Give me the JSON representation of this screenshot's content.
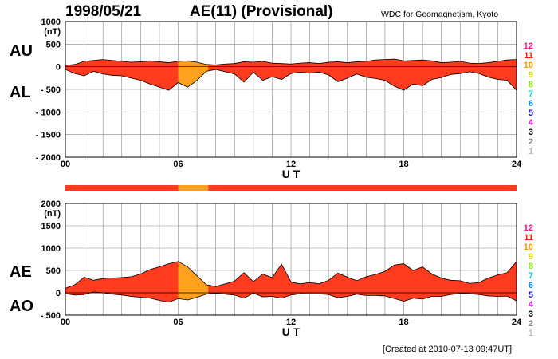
{
  "header": {
    "date": "1998/05/21",
    "title": "AE(11) (Provisional)",
    "source": "WDC for Geomagnetism, Kyoto"
  },
  "footer": {
    "created": "[Created at 2010-07-13 09:47UT]"
  },
  "colors": {
    "fill_main": "#ff3b1f",
    "fill_provisional": "#ffa01e",
    "grid": "#888888",
    "scale": [
      {
        "label": "12",
        "color": "#ff1493"
      },
      {
        "label": "11",
        "color": "#ff2200"
      },
      {
        "label": "10",
        "color": "#ff9900"
      },
      {
        "label": "9",
        "color": "#dddd00"
      },
      {
        "label": "8",
        "color": "#88ee00"
      },
      {
        "label": "7",
        "color": "#00dddd"
      },
      {
        "label": "6",
        "color": "#0088ff"
      },
      {
        "label": "5",
        "color": "#1111dd"
      },
      {
        "label": "4",
        "color": "#cc00cc"
      },
      {
        "label": "3",
        "color": "#000000"
      },
      {
        "label": "2",
        "color": "#888888"
      },
      {
        "label": "1",
        "color": "#bbbbbb"
      }
    ]
  },
  "station_bar": {
    "segments": [
      {
        "x0": 0,
        "x1": 6.0,
        "level": 11
      },
      {
        "x0": 6.0,
        "x1": 7.6,
        "level": 10
      },
      {
        "x0": 7.6,
        "x1": 24,
        "level": 11
      }
    ]
  },
  "chart_data": [
    {
      "type": "area",
      "panel": "top",
      "label_upper": "AU",
      "label_lower": "AL",
      "unit": "(nT)",
      "xlabel": "U T",
      "xlim": [
        0,
        24
      ],
      "ylim": [
        -2000,
        1000
      ],
      "yticks": [
        1000,
        500,
        0,
        -500,
        -1000,
        -1500,
        -2000
      ],
      "ytick_labels": [
        "1000",
        "500",
        "0",
        "- 500",
        "- 1000",
        "- 1500",
        "- 2000"
      ],
      "xticks": [
        0,
        6,
        12,
        18,
        24
      ],
      "xtick_labels": [
        "00",
        "06",
        "12",
        "18",
        "24"
      ],
      "provisional_range": [
        6.0,
        7.6
      ],
      "x": [
        0,
        0.5,
        1,
        1.5,
        2,
        2.5,
        3,
        3.5,
        4,
        4.5,
        5,
        5.5,
        6,
        6.5,
        7,
        7.5,
        8,
        8.5,
        9,
        9.5,
        10,
        10.5,
        11,
        11.5,
        12,
        12.5,
        13,
        13.5,
        14,
        14.5,
        15,
        15.5,
        16,
        16.5,
        17,
        17.5,
        18,
        18.5,
        19,
        19.5,
        20,
        20.5,
        21,
        21.5,
        22,
        22.5,
        23,
        23.5,
        24
      ],
      "series": [
        {
          "name": "AU",
          "values": [
            30,
            50,
            120,
            140,
            160,
            140,
            120,
            100,
            110,
            130,
            110,
            90,
            120,
            130,
            100,
            50,
            40,
            60,
            70,
            110,
            100,
            120,
            80,
            70,
            60,
            80,
            90,
            70,
            100,
            110,
            90,
            110,
            120,
            150,
            160,
            170,
            130,
            140,
            150,
            130,
            90,
            100,
            120,
            80,
            70,
            90,
            120,
            150,
            160
          ]
        },
        {
          "name": "AL",
          "values": [
            -60,
            -150,
            -200,
            -100,
            -160,
            -190,
            -200,
            -250,
            -300,
            -380,
            -450,
            -520,
            -350,
            -450,
            -300,
            -100,
            -60,
            -110,
            -160,
            -340,
            -120,
            -300,
            -220,
            -280,
            -150,
            -120,
            -140,
            -120,
            -180,
            -330,
            -250,
            -160,
            -230,
            -260,
            -300,
            -430,
            -520,
            -380,
            -420,
            -280,
            -240,
            -170,
            -150,
            -110,
            -150,
            -230,
            -280,
            -300,
            -520
          ]
        }
      ]
    },
    {
      "type": "area",
      "panel": "bottom",
      "label_upper": "AE",
      "label_lower": "AO",
      "unit": "(nT)",
      "xlabel": "U T",
      "xlim": [
        0,
        24
      ],
      "ylim": [
        -500,
        2000
      ],
      "yticks": [
        2000,
        1500,
        1000,
        500,
        0,
        -500
      ],
      "ytick_labels": [
        "2000",
        "1500",
        "1000",
        "500",
        "0",
        "- 500"
      ],
      "xticks": [
        0,
        6,
        12,
        18,
        24
      ],
      "xtick_labels": [
        "00",
        "06",
        "12",
        "18",
        "24"
      ],
      "provisional_range": [
        6.0,
        7.6
      ],
      "x": [
        0,
        0.5,
        1,
        1.5,
        2,
        2.5,
        3,
        3.5,
        4,
        4.5,
        5,
        5.5,
        6,
        6.5,
        7,
        7.5,
        8,
        8.5,
        9,
        9.5,
        10,
        10.5,
        11,
        11.5,
        12,
        12.5,
        13,
        13.5,
        14,
        14.5,
        15,
        15.5,
        16,
        16.5,
        17,
        17.5,
        18,
        18.5,
        19,
        19.5,
        20,
        20.5,
        21,
        21.5,
        22,
        22.5,
        23,
        23.5,
        24
      ],
      "series": [
        {
          "name": "AE",
          "values": [
            100,
            180,
            350,
            280,
            320,
            330,
            340,
            360,
            420,
            520,
            580,
            650,
            700,
            580,
            380,
            180,
            140,
            200,
            260,
            450,
            250,
            420,
            340,
            640,
            240,
            200,
            230,
            200,
            280,
            440,
            350,
            270,
            360,
            410,
            480,
            620,
            650,
            500,
            580,
            420,
            330,
            280,
            270,
            210,
            230,
            330,
            400,
            450,
            700
          ]
        },
        {
          "name": "AO",
          "values": [
            -20,
            -50,
            -40,
            20,
            0,
            -30,
            -50,
            -80,
            -100,
            -120,
            -170,
            -210,
            -130,
            -160,
            -100,
            -30,
            -10,
            -30,
            -50,
            -120,
            -10,
            -90,
            -80,
            -120,
            -50,
            -20,
            -25,
            -25,
            -40,
            -110,
            -80,
            -30,
            -60,
            -60,
            -70,
            -130,
            -190,
            -120,
            -140,
            -80,
            -80,
            -40,
            -15,
            -20,
            -40,
            -70,
            -80,
            -75,
            -180
          ]
        }
      ]
    }
  ]
}
